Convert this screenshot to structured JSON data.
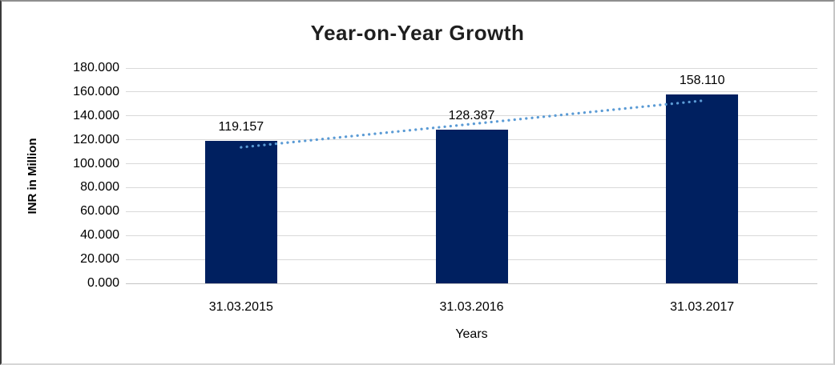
{
  "chart": {
    "title": "Year-on-Year Growth",
    "y_axis_title": "INR in Million",
    "x_axis_title": "Years"
  },
  "chart_data": {
    "type": "bar",
    "title": "Year-on-Year Growth",
    "categories": [
      "31.03.2015",
      "31.03.2016",
      "31.03.2017"
    ],
    "values": [
      119.157,
      128.387,
      158.11
    ],
    "values_formatted": [
      "119.157",
      "128.387",
      "158.110"
    ],
    "xlabel": "Years",
    "ylabel": "INR in Million",
    "ylim": [
      0,
      180
    ],
    "ytick_step": 20,
    "ytick_labels": [
      "0.000",
      "20.000",
      "40.000",
      "60.000",
      "80.000",
      "100.000",
      "120.000",
      "140.000",
      "160.000",
      "180.000"
    ],
    "grid": true,
    "legend": "none",
    "bar_color": "#002060",
    "trendline": {
      "type": "linear",
      "style": "dotted",
      "color": "#5b9bd5"
    },
    "colors": {
      "gridline": "#d9d9d9",
      "axis_line": "#c3c3c3",
      "text": "#000000",
      "title_text": "#1f1f1f"
    }
  }
}
